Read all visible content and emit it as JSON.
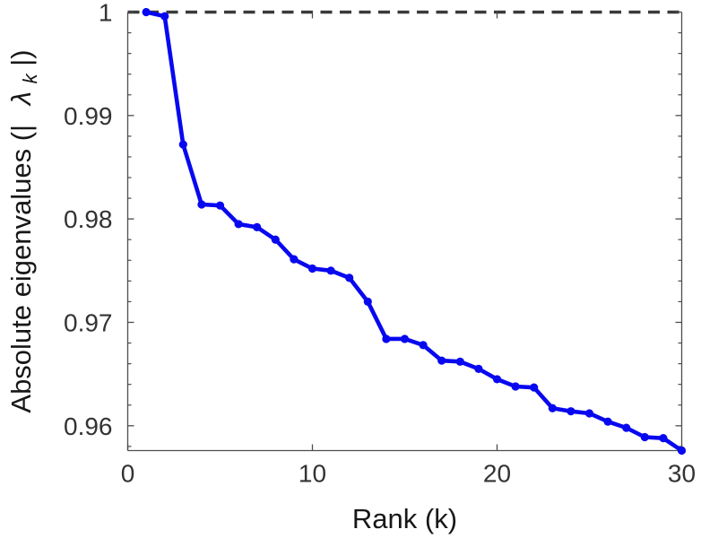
{
  "chart_data": {
    "type": "line",
    "title": "",
    "xlabel": "Rank (k)",
    "ylabel": "Absolute eigenvalues (| λ_k |)",
    "ylabel_parts": {
      "prefix": "Absolute eigenvalues (|",
      "symbol": "λ",
      "subscript": "k",
      "suffix": "|)"
    },
    "x": [
      1,
      2,
      3,
      4,
      5,
      6,
      7,
      8,
      9,
      10,
      11,
      12,
      13,
      14,
      15,
      16,
      17,
      18,
      19,
      20,
      21,
      22,
      23,
      24,
      25,
      26,
      27,
      28,
      29,
      30
    ],
    "series": [
      {
        "name": "absolute-eigenvalues",
        "color": "#0808f0",
        "marker": "circle",
        "values": [
          1.0,
          0.9996,
          0.9872,
          0.9814,
          0.9813,
          0.9795,
          0.9792,
          0.978,
          0.9761,
          0.9752,
          0.975,
          0.9743,
          0.972,
          0.9684,
          0.9684,
          0.9678,
          0.9663,
          0.9662,
          0.9655,
          0.9645,
          0.9638,
          0.9637,
          0.9617,
          0.9614,
          0.9612,
          0.9604,
          0.9598,
          0.9589,
          0.9588,
          0.9576
        ]
      }
    ],
    "reference_line": {
      "y": 1,
      "style": "dashed",
      "color": "#3a3a3a"
    },
    "xlim": [
      0,
      30
    ],
    "ylim": [
      0.9576,
      1.0
    ],
    "xticks": [
      0,
      10,
      20,
      30
    ],
    "xtick_labels": [
      "0",
      "10",
      "20",
      "30"
    ],
    "yticks": [
      0.96,
      0.97,
      0.98,
      0.99,
      1
    ],
    "ytick_labels": [
      "0.96",
      "0.97",
      "0.98",
      "0.99",
      "1"
    ],
    "y_minor_tick_step": 0.002,
    "grid": false,
    "legend": null,
    "axis_color": "#4d4d4d"
  }
}
